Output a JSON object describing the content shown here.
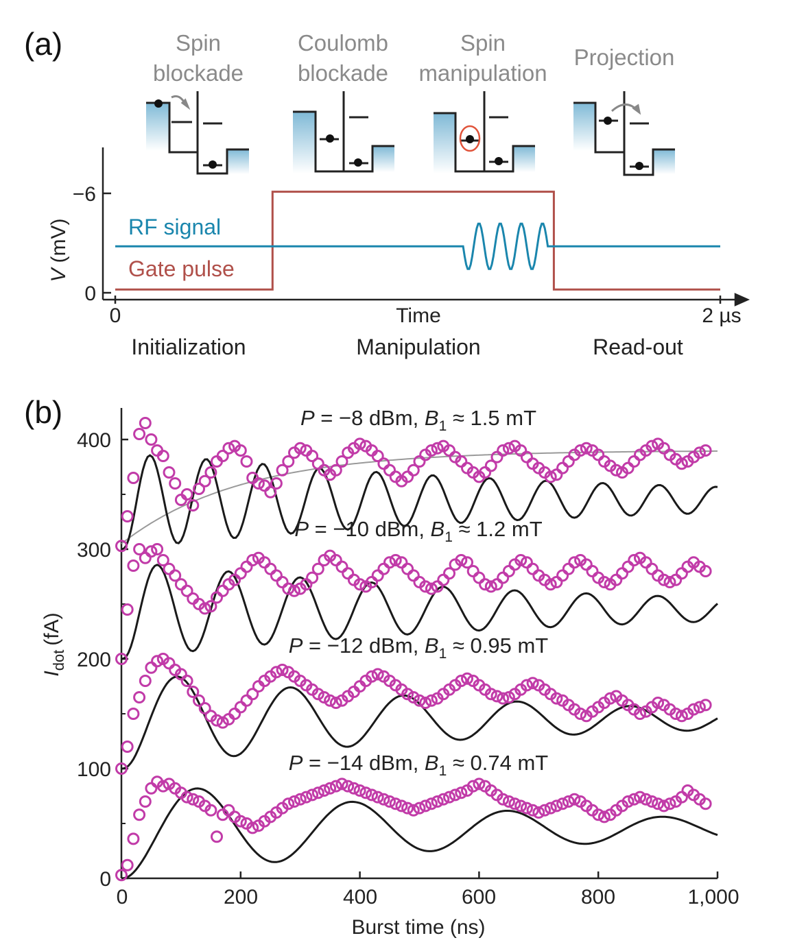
{
  "panel_a": {
    "label": "(a)",
    "schematics": [
      {
        "line1": "Spin",
        "line2": "blockade"
      },
      {
        "line1": "Coulomb",
        "line2": "blockade"
      },
      {
        "line1": "Spin",
        "line2": "manipulation"
      },
      {
        "line1": "Projection",
        "line2": ""
      }
    ],
    "colors": {
      "rf": "#1a86ad",
      "gate": "#b0504a",
      "reservoir": "#7fb9d6",
      "rotation_arrow": "#e0533a",
      "label_gray": "#8a8a8a"
    }
  },
  "panel_b": {
    "label": "(b)",
    "marker_color": "#c13ba8",
    "fit_color": "#1a1a1a",
    "envelope_color": "#9a9a9a"
  },
  "chart_data": [
    {
      "type": "line",
      "panel": "a",
      "title": "",
      "xlabel": "Time",
      "ylabel_italic": "V",
      "ylabel_unit": "(mV)",
      "x_tick_labels": [
        {
          "value": 0,
          "label": "0"
        },
        {
          "value": 2,
          "label": "2 µs"
        }
      ],
      "y_tick_labels": [
        {
          "value": 0,
          "label": "0"
        },
        {
          "value": -6,
          "label": "−6"
        }
      ],
      "xlim": [
        0,
        2
      ],
      "ylim": [
        0,
        -7
      ],
      "phases": [
        "Initialization",
        "Manipulation",
        "Read-out"
      ],
      "series": [
        {
          "name": "RF signal",
          "baseline": -2.8,
          "burst_start": 1.15,
          "burst_end": 1.43,
          "burst_cycles": 4,
          "burst_amplitude": 1.4
        },
        {
          "name": "Gate pulse",
          "x": [
            0,
            0.52,
            0.52,
            1.45,
            1.45,
            2.0
          ],
          "y": [
            -0.2,
            -0.2,
            -6.1,
            -6.1,
            -0.2,
            -0.2
          ]
        }
      ]
    },
    {
      "type": "scatter",
      "panel": "b",
      "title": "",
      "xlabel": "Burst time (ns)",
      "ylabel_symbol": "I",
      "ylabel_subscript": "dot",
      "ylabel_unit": "(fA)",
      "xlim": [
        0,
        1000
      ],
      "ylim": [
        0,
        430
      ],
      "x_ticks": [
        0,
        200,
        400,
        600,
        800,
        1000
      ],
      "x_tick_labels": [
        "0",
        "200",
        "400",
        "600",
        "800",
        "1,000"
      ],
      "y_ticks": [
        0,
        100,
        200,
        300,
        400
      ],
      "y_tick_labels": [
        "0",
        "100",
        "200",
        "300",
        "400"
      ],
      "series": [
        {
          "p_symbol": "P",
          "p_text": " = −8 dBm, ",
          "b_symbol": "B",
          "b_sub": "1",
          "b_text": " ≈ 1.5 mT",
          "offset": 300,
          "fit_amplitude": 90,
          "fit_period": 95,
          "fit_tau": 750,
          "envelope": {
            "start": 305,
            "end": 390,
            "tau": 200
          },
          "x": [
            0,
            10,
            20,
            30,
            40,
            50,
            60,
            70,
            80,
            90,
            100,
            110,
            120,
            130,
            140,
            150,
            160,
            170,
            180,
            190,
            200,
            210,
            220,
            230,
            240,
            250,
            260,
            270,
            280,
            290,
            300,
            310,
            320,
            330,
            340,
            350,
            360,
            370,
            380,
            390,
            400,
            410,
            420,
            430,
            440,
            450,
            460,
            470,
            480,
            490,
            500,
            510,
            520,
            530,
            540,
            550,
            560,
            570,
            580,
            590,
            600,
            610,
            620,
            630,
            640,
            650,
            660,
            670,
            680,
            690,
            700,
            710,
            720,
            730,
            740,
            750,
            760,
            770,
            780,
            790,
            800,
            810,
            820,
            830,
            840,
            850,
            860,
            870,
            880,
            890,
            900,
            910,
            920,
            930,
            940,
            950,
            960,
            970,
            980
          ],
          "y": [
            303,
            330,
            365,
            405,
            415,
            400,
            390,
            385,
            370,
            360,
            345,
            350,
            340,
            355,
            362,
            370,
            380,
            385,
            392,
            394,
            390,
            380,
            365,
            360,
            358,
            352,
            360,
            372,
            380,
            388,
            392,
            390,
            385,
            378,
            372,
            368,
            372,
            380,
            388,
            392,
            396,
            394,
            390,
            385,
            378,
            372,
            366,
            362,
            366,
            372,
            380,
            386,
            390,
            392,
            394,
            390,
            384,
            380,
            374,
            370,
            366,
            370,
            376,
            384,
            390,
            392,
            394,
            390,
            384,
            378,
            374,
            370,
            366,
            368,
            374,
            380,
            386,
            390,
            392,
            390,
            386,
            380,
            376,
            372,
            370,
            374,
            380,
            386,
            390,
            394,
            396,
            392,
            386,
            382,
            378,
            380,
            384,
            388,
            390
          ]
        },
        {
          "p_symbol": "P",
          "p_text": " = −10 dBm, ",
          "b_symbol": "B",
          "b_sub": "1",
          "b_text": " ≈ 1.2 mT",
          "offset": 200,
          "fit_amplitude": 90,
          "fit_period": 120,
          "fit_tau": 700,
          "x": [
            0,
            10,
            20,
            30,
            40,
            50,
            60,
            70,
            80,
            90,
            100,
            110,
            120,
            130,
            140,
            150,
            160,
            170,
            180,
            190,
            200,
            210,
            220,
            230,
            240,
            250,
            260,
            270,
            280,
            290,
            300,
            310,
            320,
            330,
            340,
            350,
            360,
            370,
            380,
            390,
            400,
            410,
            420,
            430,
            440,
            450,
            460,
            470,
            480,
            490,
            500,
            510,
            520,
            530,
            540,
            550,
            560,
            570,
            580,
            590,
            600,
            610,
            620,
            630,
            640,
            650,
            660,
            670,
            680,
            690,
            700,
            710,
            720,
            730,
            740,
            750,
            760,
            770,
            780,
            790,
            800,
            810,
            820,
            830,
            840,
            850,
            860,
            870,
            880,
            890,
            900,
            910,
            920,
            930,
            940,
            950,
            960,
            970,
            980
          ],
          "y": [
            200,
            245,
            285,
            300,
            292,
            298,
            300,
            290,
            282,
            276,
            268,
            262,
            255,
            250,
            246,
            248,
            256,
            262,
            268,
            272,
            278,
            284,
            290,
            292,
            288,
            282,
            276,
            270,
            264,
            262,
            264,
            268,
            274,
            282,
            290,
            294,
            290,
            284,
            278,
            272,
            268,
            266,
            270,
            276,
            282,
            288,
            290,
            288,
            282,
            276,
            270,
            266,
            264,
            266,
            272,
            278,
            286,
            290,
            288,
            280,
            274,
            268,
            266,
            268,
            274,
            280,
            286,
            290,
            288,
            282,
            276,
            272,
            268,
            270,
            276,
            282,
            288,
            290,
            286,
            280,
            274,
            270,
            268,
            272,
            278,
            284,
            290,
            292,
            288,
            282,
            276,
            272,
            270,
            272,
            278,
            284,
            288,
            284,
            280
          ]
        },
        {
          "p_symbol": "P",
          "p_text": " = −12 dBm, ",
          "b_symbol": "B",
          "b_sub": "1",
          "b_text": " ≈ 0.95 mT",
          "offset": 100,
          "fit_amplitude": 90,
          "fit_period": 190,
          "fit_tau": 650,
          "x": [
            0,
            10,
            20,
            30,
            40,
            50,
            60,
            70,
            80,
            90,
            100,
            110,
            120,
            130,
            140,
            150,
            160,
            170,
            180,
            190,
            200,
            210,
            220,
            230,
            240,
            250,
            260,
            270,
            280,
            290,
            300,
            310,
            320,
            330,
            340,
            350,
            360,
            370,
            380,
            390,
            400,
            410,
            420,
            430,
            440,
            450,
            460,
            470,
            480,
            490,
            500,
            510,
            520,
            530,
            540,
            550,
            560,
            570,
            580,
            590,
            600,
            610,
            620,
            630,
            640,
            650,
            660,
            670,
            680,
            690,
            700,
            710,
            720,
            730,
            740,
            750,
            760,
            770,
            780,
            790,
            800,
            810,
            820,
            830,
            840,
            850,
            860,
            870,
            880,
            890,
            900,
            910,
            920,
            930,
            940,
            950,
            960,
            970,
            980
          ],
          "y": [
            100,
            120,
            150,
            165,
            180,
            192,
            198,
            200,
            196,
            190,
            186,
            180,
            170,
            162,
            155,
            148,
            144,
            142,
            145,
            150,
            156,
            162,
            168,
            175,
            180,
            184,
            188,
            190,
            188,
            184,
            180,
            176,
            172,
            168,
            165,
            162,
            160,
            162,
            166,
            170,
            175,
            180,
            184,
            186,
            184,
            180,
            176,
            172,
            168,
            165,
            162,
            160,
            162,
            164,
            168,
            172,
            176,
            180,
            182,
            180,
            176,
            172,
            168,
            166,
            164,
            165,
            168,
            172,
            176,
            178,
            176,
            172,
            168,
            164,
            162,
            158,
            154,
            150,
            148,
            152,
            156,
            160,
            164,
            166,
            162,
            158,
            154,
            150,
            152,
            156,
            160,
            158,
            154,
            150,
            148,
            150,
            154,
            156,
            158
          ]
        },
        {
          "p_symbol": "P",
          "p_text": " = −14 dBm, ",
          "b_symbol": "B",
          "b_sub": "1",
          "b_text": " ≈ 0.74 mT",
          "offset": 0,
          "fit_amplitude": 90,
          "fit_period": 260,
          "fit_tau": 650,
          "x": [
            0,
            10,
            20,
            30,
            40,
            50,
            60,
            70,
            80,
            90,
            100,
            110,
            120,
            130,
            140,
            150,
            160,
            170,
            180,
            190,
            200,
            210,
            220,
            230,
            240,
            250,
            260,
            270,
            280,
            290,
            300,
            310,
            320,
            330,
            340,
            350,
            360,
            370,
            380,
            390,
            400,
            410,
            420,
            430,
            440,
            450,
            460,
            470,
            480,
            490,
            500,
            510,
            520,
            530,
            540,
            550,
            560,
            570,
            580,
            590,
            600,
            610,
            620,
            630,
            640,
            650,
            660,
            670,
            680,
            690,
            700,
            710,
            720,
            730,
            740,
            750,
            760,
            770,
            780,
            790,
            800,
            810,
            820,
            830,
            840,
            850,
            860,
            870,
            880,
            890,
            900,
            910,
            920,
            930,
            940,
            950,
            960,
            970,
            980
          ],
          "y": [
            3,
            12,
            36,
            58,
            70,
            82,
            88,
            84,
            86,
            82,
            78,
            74,
            72,
            70,
            66,
            62,
            38,
            58,
            62,
            56,
            52,
            50,
            46,
            48,
            52,
            56,
            60,
            64,
            68,
            70,
            72,
            74,
            76,
            78,
            80,
            82,
            84,
            86,
            84,
            82,
            80,
            78,
            76,
            74,
            72,
            70,
            68,
            66,
            64,
            62,
            64,
            66,
            68,
            70,
            72,
            74,
            76,
            78,
            80,
            84,
            86,
            84,
            80,
            76,
            72,
            70,
            68,
            66,
            64,
            62,
            60,
            62,
            64,
            66,
            68,
            70,
            72,
            70,
            66,
            62,
            58,
            56,
            58,
            62,
            66,
            70,
            72,
            74,
            72,
            70,
            68,
            66,
            68,
            70,
            74,
            80,
            76,
            72,
            68
          ]
        }
      ]
    }
  ]
}
